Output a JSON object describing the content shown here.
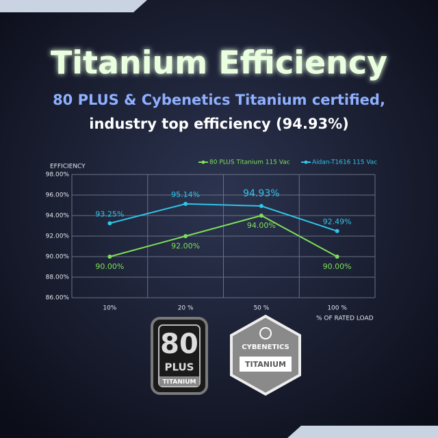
{
  "chart_data": {
    "type": "line",
    "title": "Titanium Efficiency",
    "subtitle": [
      "80 PLUS & Cybenetics Titanium certified,",
      "industry  top efficiency (94.93%)"
    ],
    "y_label": "EFFICIENCY",
    "x_label": "% OF RATED LOAD",
    "categories": [
      "10%",
      "20 %",
      "50 %",
      "100 %"
    ],
    "series": [
      {
        "name": "80 PLUS Titanium 115 Vac",
        "color": "#7ee05a",
        "values": [
          90,
          92,
          94,
          90
        ],
        "value_labels": [
          "90.00%",
          "92.00%",
          "94.00%",
          "90.00%"
        ]
      },
      {
        "name": "Aidan-T1616  115 Vac",
        "color": "#2fc6e8",
        "values": [
          93.25,
          95.14,
          94.93,
          92.49
        ],
        "value_labels": [
          "93.25%",
          "95.14%",
          "94.93%",
          "92.49%"
        ]
      }
    ],
    "ylim": [
      86,
      98
    ],
    "yticks": [
      {
        "value": 86,
        "label": "86.00%"
      },
      {
        "value": 88,
        "label": "88.00%"
      },
      {
        "value": 90,
        "label": "90.00%"
      },
      {
        "value": 92,
        "label": "92.00%"
      },
      {
        "value": 94,
        "label": "94.00%"
      },
      {
        "value": 96,
        "label": "96.00%"
      },
      {
        "value": 98,
        "label": "98.00%"
      }
    ],
    "grid": true
  },
  "logos": {
    "plus": [
      "80",
      "PLUS",
      "TITANIUM"
    ],
    "cybenetics": [
      "CYBENETICS",
      "TITANIUM"
    ]
  }
}
